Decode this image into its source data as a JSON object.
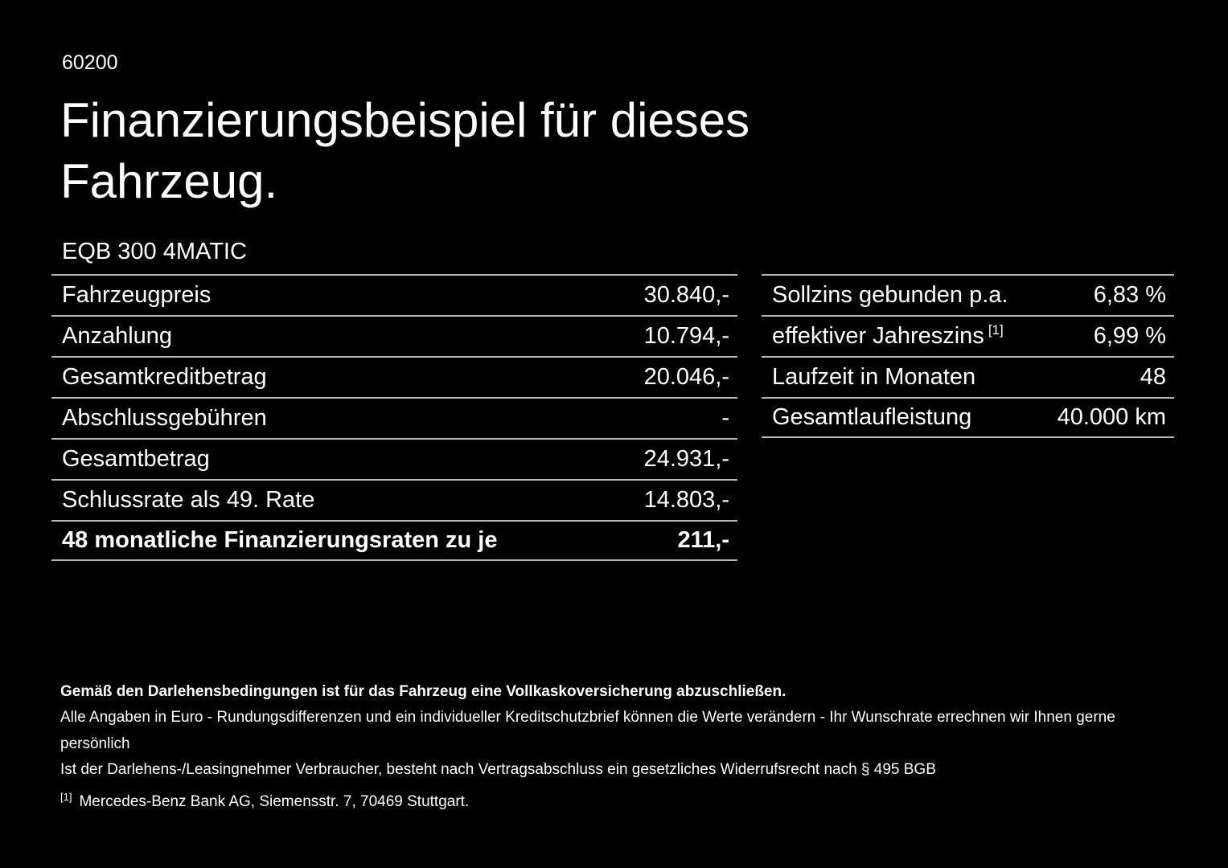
{
  "page": {
    "code": "60200",
    "title": "Finanzierungsbeispiel für dieses Fahrzeug.",
    "vehicle_model": "EQB 300 4MATIC"
  },
  "finance_table": {
    "rows": [
      {
        "label": "Fahrzeugpreis",
        "value": "30.840,-"
      },
      {
        "label": "Anzahlung",
        "value": "10.794,-"
      },
      {
        "label": "Gesamtkreditbetrag",
        "value": "20.046,-"
      },
      {
        "label": "Abschlussgebühren",
        "value": "-"
      },
      {
        "label": "Gesamtbetrag",
        "value": "24.931,-"
      },
      {
        "label": "Schlussrate als 49. Rate",
        "value": "14.803,-"
      },
      {
        "label": "48 monatliche Finanzierungsraten zu je",
        "value": "211,-"
      }
    ]
  },
  "conditions_table": {
    "rows": [
      {
        "label": "Sollzins gebunden p.a.",
        "value": "6,83 %"
      },
      {
        "label": "effektiver Jahreszins",
        "footnote_marker": "[1]",
        "value": "6,99 %"
      },
      {
        "label": "Laufzeit in Monaten",
        "value": "48"
      },
      {
        "label": "Gesamtlaufleistung",
        "value": "40.000 km"
      }
    ]
  },
  "footer": {
    "insurance_note": "Gemäß den Darlehensbedingungen ist für das Fahrzeug eine Vollkaskoversicherung abzuschließen.",
    "disclaimer_line1": "Alle Angaben in Euro - Rundungsdifferenzen und ein individueller Kreditschutzbrief können die Werte verändern - Ihr Wunschrate errechnen wir Ihnen gerne persönlich",
    "disclaimer_line2": "Ist der Darlehens-/Leasingnehmer Verbraucher, besteht nach Vertragsabschluss ein gesetzliches Widerrufsrecht nach § 495 BGB",
    "footnote_marker": "[1]",
    "footnote_text": "Mercedes-Benz Bank AG, Siemensstr. 7, 70469 Stuttgart."
  }
}
